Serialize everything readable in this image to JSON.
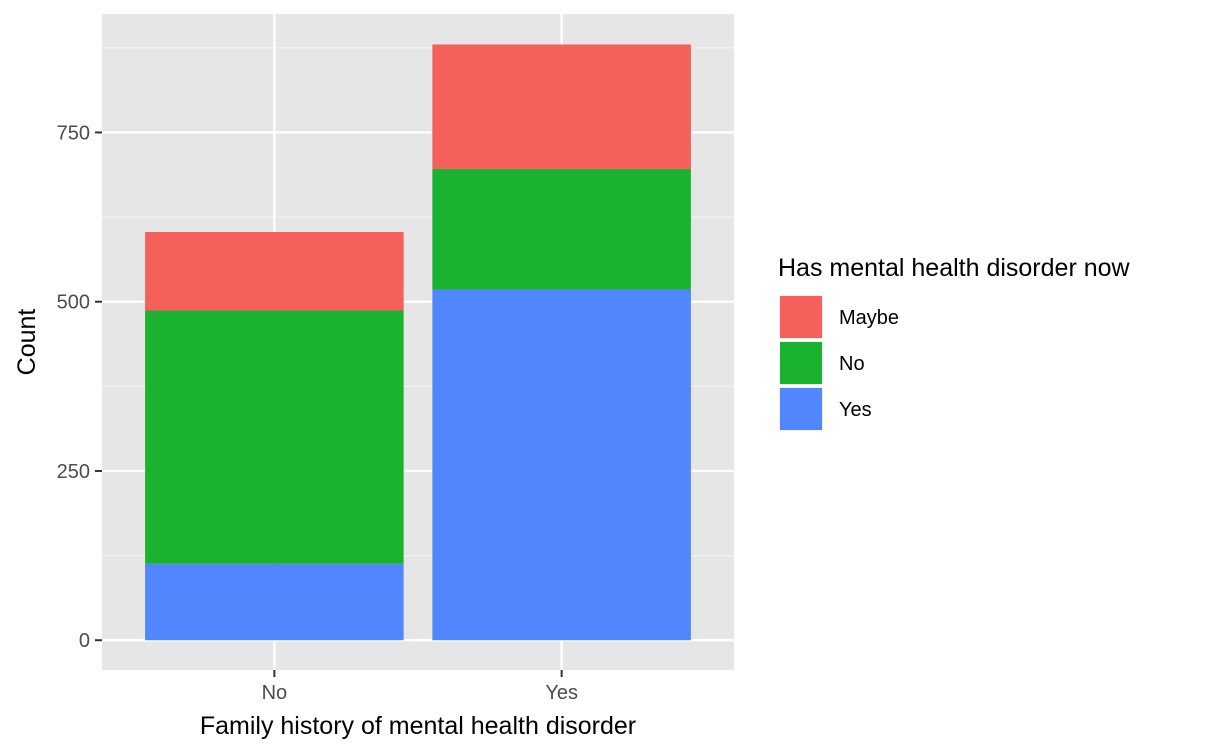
{
  "chart_data": {
    "type": "bar",
    "stacked": true,
    "categories": [
      "No",
      "Yes"
    ],
    "series": [
      {
        "name": "Yes",
        "color": "#5087FF",
        "values": [
          113,
          518
        ]
      },
      {
        "name": "No",
        "color": "#1AB22E",
        "values": [
          374,
          178
        ]
      },
      {
        "name": "Maybe",
        "color": "#F5605B",
        "values": [
          116,
          184
        ]
      }
    ],
    "legend_order": [
      "Maybe",
      "No",
      "Yes"
    ],
    "xlabel": "Family history of mental health disorder",
    "ylabel": "Count",
    "legend_title": "Has mental health disorder now",
    "legend_position": "right",
    "yticks": [
      0,
      250,
      500,
      750
    ],
    "ylim": [
      -44,
      925
    ],
    "grid": true,
    "panel_background": "#E6E6E6"
  }
}
